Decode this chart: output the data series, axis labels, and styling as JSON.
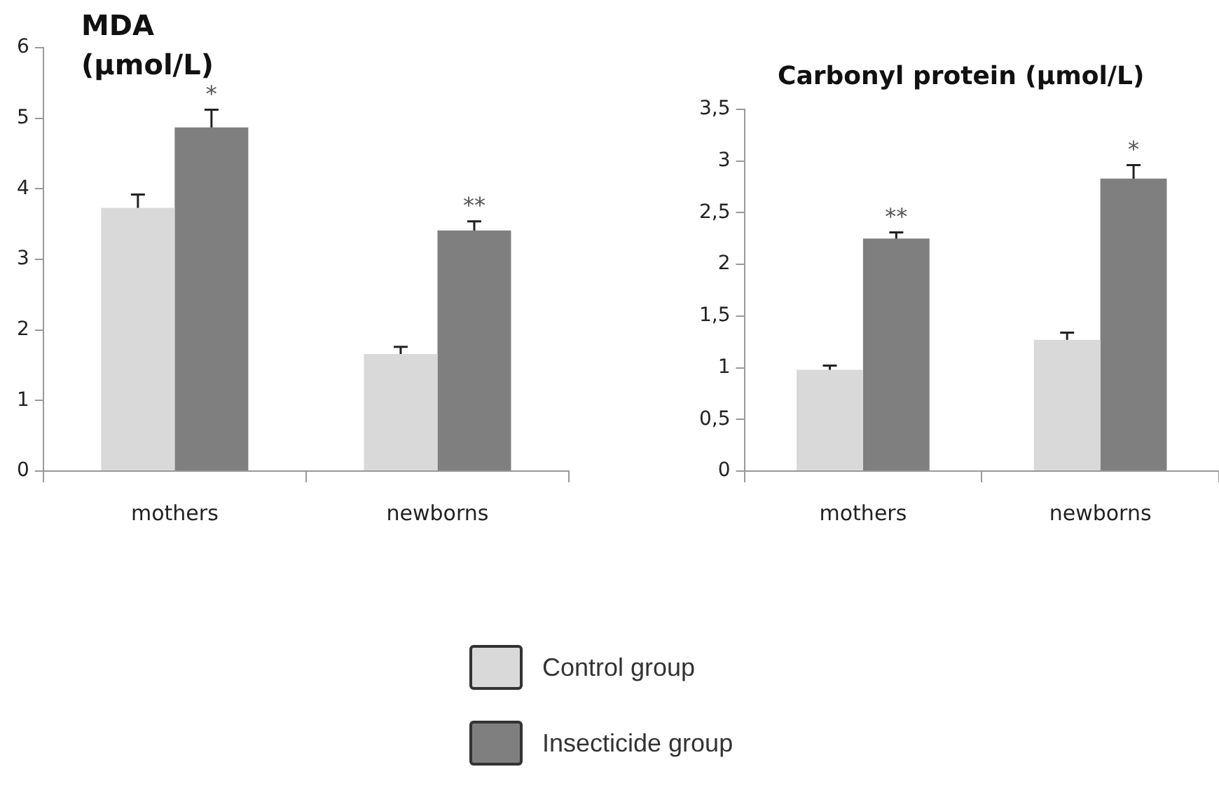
{
  "chart_data": [
    {
      "type": "bar",
      "title": "MDA (µmol/L)",
      "categories": [
        "mothers",
        "newborns"
      ],
      "series": [
        {
          "name": "Control group",
          "color": "#d9d9d9",
          "values": [
            3.73,
            1.66
          ],
          "errors": [
            0.19,
            0.1
          ]
        },
        {
          "name": "Insecticide group",
          "color": "#7f7f7f",
          "values": [
            4.87,
            3.41
          ],
          "errors": [
            0.25,
            0.13
          ]
        }
      ],
      "ylim": [
        0,
        6
      ],
      "yticks": [
        0,
        1,
        2,
        3,
        4,
        5,
        6
      ],
      "grid": false,
      "legend": "bottom",
      "annotations": [
        {
          "text": "*",
          "x": "mothers",
          "y": 4.87
        },
        {
          "text": "**",
          "x": "newborns",
          "y": 3.41
        }
      ]
    },
    {
      "type": "bar",
      "title": "Carbonyl protein (µmol/L)",
      "categories": [
        "mothers",
        "newborns"
      ],
      "series": [
        {
          "color": "#d9d9d9",
          "values": [
            0.98,
            1.27
          ],
          "errors": [
            0.04,
            0.07
          ]
        },
        {
          "color": "#7f7f7f",
          "values": [
            2.25,
            2.83
          ],
          "errors": [
            0.06,
            0.13
          ]
        }
      ],
      "ylim": [
        0,
        3.5
      ],
      "yticks": [
        0,
        {
          "value": 0.5,
          "label": "0,5"
        },
        1,
        {
          "value": 1.5,
          "label": "1,5"
        },
        2,
        {
          "value": 2.5,
          "label": "2,5"
        },
        3,
        {
          "value": 3.5,
          "label": "3,5"
        }
      ],
      "grid": false,
      "annotations": [
        {
          "text": "**",
          "x": "mothers",
          "y": 2.25
        },
        {
          "text": "*",
          "x": "newborns",
          "y": 2.83
        }
      ]
    }
  ]
}
